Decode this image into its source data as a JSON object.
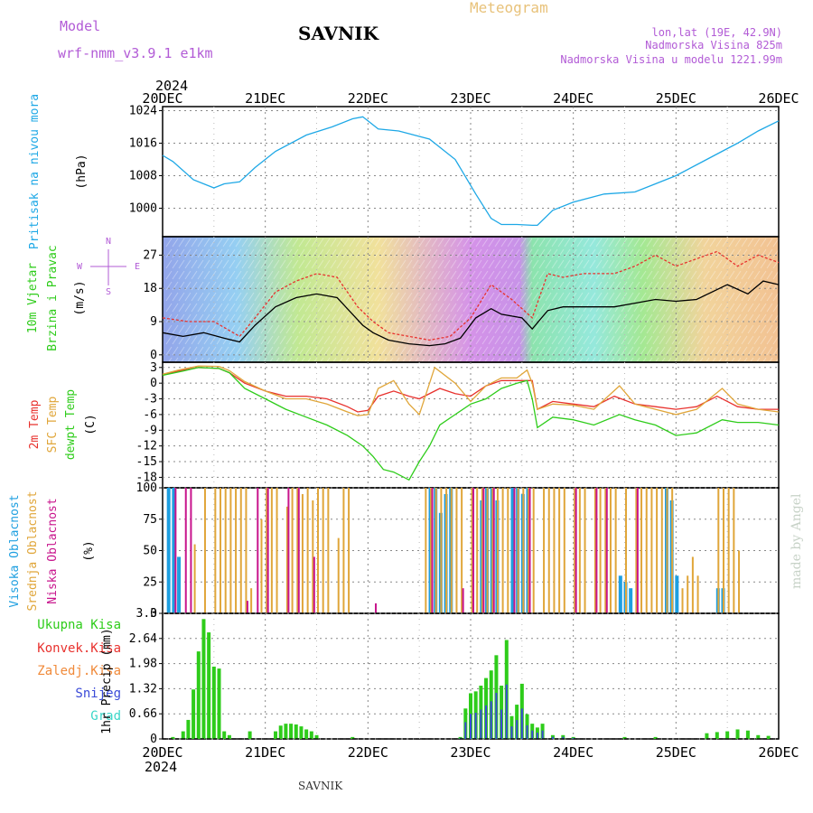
{
  "header": {
    "model_label": "Model",
    "model_name": "wrf-nmm_v3.9.1 e1km",
    "station": "SAVNIK",
    "product": "Meteogram",
    "coords": "lon,lat (19E, 42.9N)",
    "altitude": "Nadmorska Visina 825m",
    "model_altitude": "Nadmorska Visina u modelu 1221.99m",
    "year_top": "2024",
    "year_bottom": "2024",
    "footer_station": "SAVNIK",
    "watermark": "made by Angel"
  },
  "colors": {
    "pressure": "#1ea8e6",
    "wind_speed": "#000000",
    "wind_gust": "#e8322e",
    "temp_2m": "#e8322e",
    "temp_sfc": "#e0a63a",
    "dewpoint": "#2ecc1a",
    "cloud_high": "#1e9fe0",
    "cloud_mid": "#e0a63a",
    "cloud_low": "#c8148c",
    "precip_total": "#2ecc1a",
    "precip_conv": "#e8322e",
    "precip_snow": "#3a4ad8",
    "grid": "#888888"
  },
  "chart_data": [
    {
      "id": "pressure",
      "type": "line",
      "ylabel": [
        "Pritisak na nivou mora",
        "(hPa)"
      ],
      "yticks": [
        "1024",
        "1016",
        "1008",
        "1000"
      ],
      "ylim": [
        993,
        1025
      ],
      "x_dates": [
        "20DEC",
        "21DEC",
        "22DEC",
        "23DEC",
        "24DEC",
        "25DEC",
        "26DEC"
      ],
      "series": [
        {
          "x": [
            0,
            0.1,
            0.3,
            0.5,
            0.6,
            0.75,
            0.9,
            1.1,
            1.4,
            1.65,
            1.85,
            1.95,
            2.0,
            2.1,
            2.3,
            2.6,
            2.85,
            3.05,
            3.2,
            3.3,
            3.45,
            3.6,
            3.65,
            3.8,
            4.0,
            4.3,
            4.6,
            4.8,
            5.0,
            5.3,
            5.6,
            5.8,
            6.0
          ],
          "y": [
            1013,
            1011.5,
            1007,
            1005,
            1006,
            1006.5,
            1010,
            1014,
            1018,
            1020,
            1022,
            1022.5,
            1021.5,
            1019.5,
            1019,
            1017,
            1012,
            1003.5,
            997.5,
            996,
            996,
            995.8,
            995.8,
            999.5,
            1001.5,
            1003.5,
            1004,
            1006,
            1008,
            1012,
            1016,
            1019,
            1021.5
          ]
        }
      ]
    },
    {
      "id": "wind",
      "type": "line",
      "ylabel": [
        "10m Vjetar",
        "Brzina i Pravac",
        "(m/s)"
      ],
      "compass": [
        "N",
        "W",
        "E",
        "S"
      ],
      "yticks": [
        "27",
        "18",
        "9",
        "0"
      ],
      "ylim": [
        -2,
        32
      ],
      "series": [
        {
          "name": "speed",
          "x": [
            0,
            0.2,
            0.4,
            0.6,
            0.75,
            0.9,
            1.1,
            1.3,
            1.5,
            1.7,
            1.85,
            1.95,
            2.05,
            2.2,
            2.4,
            2.6,
            2.75,
            2.9,
            3.05,
            3.2,
            3.3,
            3.5,
            3.6,
            3.75,
            3.9,
            4.1,
            4.4,
            4.6,
            4.8,
            5.0,
            5.2,
            5.5,
            5.7,
            5.85,
            6.0
          ],
          "y": [
            6,
            5,
            6,
            4.5,
            3.5,
            8,
            13,
            15.5,
            16.5,
            15.5,
            11,
            8,
            6,
            4,
            3,
            2.5,
            3,
            4.5,
            10,
            12.5,
            11,
            10,
            7,
            12,
            13,
            13,
            13,
            14,
            15,
            14.5,
            15,
            19,
            16.5,
            20,
            19
          ]
        },
        {
          "name": "gust",
          "x": [
            0,
            0.25,
            0.5,
            0.75,
            0.9,
            1.1,
            1.3,
            1.5,
            1.7,
            1.9,
            2.05,
            2.2,
            2.4,
            2.6,
            2.8,
            3.0,
            3.2,
            3.4,
            3.6,
            3.75,
            3.9,
            4.1,
            4.4,
            4.6,
            4.8,
            5.0,
            5.2,
            5.4,
            5.6,
            5.8,
            6.0
          ],
          "y": [
            10,
            9,
            9,
            5,
            10,
            17,
            20,
            22,
            21,
            13,
            9,
            6,
            5,
            4,
            5,
            10,
            19,
            15,
            10,
            22,
            21,
            22,
            22,
            24,
            27,
            24,
            26,
            28,
            24,
            27,
            25
          ]
        }
      ]
    },
    {
      "id": "temperature",
      "type": "line",
      "ylabel": [
        "2m Temp",
        "SFC Temp",
        "dewpt Temp",
        "(C)"
      ],
      "yticks": [
        "3",
        "0",
        "-3",
        "-6",
        "-9",
        "-12",
        "-15",
        "-18"
      ],
      "ylim": [
        -20,
        4
      ],
      "series": [
        {
          "name": "2m Temp",
          "x": [
            0,
            0.15,
            0.35,
            0.55,
            0.65,
            0.8,
            1.0,
            1.2,
            1.4,
            1.6,
            1.8,
            1.9,
            2.0,
            2.1,
            2.25,
            2.4,
            2.5,
            2.7,
            2.85,
            3.0,
            3.15,
            3.3,
            3.45,
            3.6,
            3.65,
            3.8,
            4.0,
            4.2,
            4.4,
            4.6,
            4.8,
            5.0,
            5.2,
            5.4,
            5.6,
            5.8,
            6.0
          ],
          "y": [
            1.5,
            2.3,
            3,
            2.8,
            2,
            0,
            -1.5,
            -2.5,
            -2.5,
            -3,
            -4.5,
            -5.5,
            -5.2,
            -2.5,
            -1.5,
            -2.5,
            -3,
            -1,
            -2,
            -2.5,
            -0.5,
            0.5,
            0.5,
            0.5,
            -5,
            -3.5,
            -4,
            -4.5,
            -2.5,
            -4,
            -4.5,
            -5,
            -4.5,
            -2.5,
            -4.5,
            -5,
            -5
          ]
        },
        {
          "name": "SFC Temp",
          "x": [
            0,
            0.15,
            0.35,
            0.55,
            0.65,
            0.8,
            1.0,
            1.2,
            1.4,
            1.6,
            1.8,
            1.9,
            2.0,
            2.1,
            2.25,
            2.4,
            2.5,
            2.65,
            2.85,
            3.0,
            3.15,
            3.3,
            3.45,
            3.55,
            3.6,
            3.65,
            3.8,
            4.0,
            4.2,
            4.45,
            4.6,
            4.8,
            5.0,
            5.2,
            5.45,
            5.6,
            5.8,
            6.0
          ],
          "y": [
            1.7,
            2.5,
            3.3,
            3.2,
            2.4,
            0.3,
            -1.5,
            -3,
            -3,
            -4,
            -5.5,
            -6.2,
            -6,
            -1,
            0.5,
            -4,
            -6,
            3,
            0,
            -3.5,
            -0.5,
            1,
            1,
            2.5,
            0,
            -5,
            -4,
            -4.2,
            -5,
            -0.5,
            -4,
            -5,
            -6,
            -5,
            -1,
            -4,
            -5,
            -5.5
          ]
        },
        {
          "name": "dewpt Temp",
          "x": [
            0,
            0.2,
            0.35,
            0.55,
            0.65,
            0.8,
            1.0,
            1.2,
            1.4,
            1.6,
            1.8,
            1.95,
            2.05,
            2.15,
            2.25,
            2.4,
            2.5,
            2.6,
            2.7,
            2.85,
            3.0,
            3.15,
            3.3,
            3.45,
            3.55,
            3.6,
            3.65,
            3.8,
            4.0,
            4.2,
            4.45,
            4.6,
            4.8,
            5.0,
            5.2,
            5.45,
            5.6,
            5.8,
            6.0
          ],
          "y": [
            1.5,
            2.3,
            3,
            2.8,
            2,
            -1,
            -3,
            -5,
            -6.5,
            -8,
            -10,
            -12,
            -14,
            -16.5,
            -17,
            -18.5,
            -15,
            -12,
            -8,
            -6,
            -4,
            -3,
            -1,
            0,
            0.5,
            -3,
            -8.5,
            -6.5,
            -7,
            -8,
            -6,
            -7,
            -8,
            -10,
            -9.5,
            -7,
            -7.5,
            -7.5,
            -8
          ]
        }
      ]
    },
    {
      "id": "clouds",
      "type": "bar",
      "ylabel": [
        "Visoka Oblacnost",
        "Srednja Oblacnost",
        "Niska Oblacnost",
        "(%)"
      ],
      "yticks": [
        "100",
        "75",
        "50",
        "25",
        "0"
      ],
      "ylim": [
        0,
        100
      ],
      "series": [
        {
          "name": "Visoka Oblacnost",
          "x": [
            0.05,
            0.1,
            0.15,
            2.6,
            2.65,
            2.7,
            2.75,
            2.8,
            3.1,
            3.15,
            3.2,
            3.25,
            3.4,
            3.45,
            3.5,
            3.55,
            4.45,
            4.5,
            4.55,
            4.9,
            4.95,
            5.0,
            5.4,
            5.45
          ],
          "values": [
            100,
            100,
            45,
            100,
            100,
            80,
            95,
            100,
            90,
            100,
            100,
            90,
            100,
            100,
            95,
            100,
            30,
            25,
            20,
            100,
            90,
            30,
            20,
            20
          ]
        },
        {
          "name": "Srednja Oblacnost",
          "x": [
            0.3,
            0.4,
            0.5,
            0.55,
            0.6,
            0.65,
            0.7,
            0.75,
            0.8,
            0.85,
            0.95,
            1.0,
            1.05,
            1.1,
            1.2,
            1.25,
            1.3,
            1.35,
            1.4,
            1.45,
            1.5,
            1.55,
            1.6,
            1.7,
            1.75,
            1.8,
            2.55,
            2.6,
            2.65,
            2.7,
            2.75,
            2.8,
            2.85,
            2.9,
            3.0,
            3.05,
            3.1,
            3.15,
            3.2,
            3.25,
            3.3,
            3.35,
            3.45,
            3.5,
            3.55,
            3.6,
            3.7,
            3.75,
            3.8,
            3.85,
            3.9,
            4.0,
            4.05,
            4.1,
            4.2,
            4.25,
            4.3,
            4.35,
            4.4,
            4.5,
            4.6,
            4.65,
            4.7,
            4.75,
            4.8,
            4.85,
            4.9,
            4.95,
            5.05,
            5.1,
            5.15,
            5.2,
            5.4,
            5.45,
            5.5,
            5.55,
            5.6
          ],
          "values": [
            55,
            100,
            100,
            100,
            100,
            100,
            100,
            100,
            100,
            20,
            75,
            100,
            100,
            100,
            85,
            100,
            100,
            95,
            100,
            90,
            100,
            100,
            100,
            60,
            100,
            100,
            100,
            100,
            100,
            100,
            100,
            100,
            100,
            100,
            100,
            100,
            100,
            100,
            100,
            100,
            100,
            100,
            100,
            100,
            100,
            100,
            100,
            100,
            100,
            100,
            100,
            100,
            100,
            100,
            100,
            100,
            100,
            100,
            100,
            100,
            100,
            100,
            100,
            100,
            100,
            100,
            100,
            100,
            20,
            30,
            45,
            30,
            100,
            100,
            100,
            100,
            50
          ]
        },
        {
          "name": "Niska Oblacnost",
          "x": [
            0.1,
            0.2,
            0.25,
            0.8,
            0.9,
            1.0,
            1.2,
            1.3,
            1.45,
            2.05,
            2.6,
            2.9,
            3.0,
            3.1,
            3.2,
            3.4,
            3.55,
            4.0,
            4.2,
            4.3,
            4.6
          ],
          "values": [
            100,
            100,
            100,
            10,
            100,
            100,
            100,
            100,
            45,
            8,
            100,
            20,
            100,
            100,
            100,
            100,
            100,
            100,
            100,
            100,
            100
          ]
        }
      ]
    },
    {
      "id": "precip",
      "type": "bar",
      "ylabel": [
        "Ukupna Kisa",
        "Konvek.Kisa",
        "Zaledj.Kisa",
        "Snijeg",
        "Grad",
        "1hr Precip (mm)"
      ],
      "yticks": [
        "3.3",
        "2.64",
        "1.98",
        "1.32",
        "0.66",
        "0"
      ],
      "ylim": [
        0,
        3.3
      ],
      "series": [
        {
          "name": "Ukupna Kisa",
          "x": [
            0.1,
            0.2,
            0.25,
            0.3,
            0.35,
            0.4,
            0.45,
            0.5,
            0.55,
            0.6,
            0.65,
            0.85,
            1.1,
            1.15,
            1.2,
            1.25,
            1.3,
            1.35,
            1.4,
            1.45,
            1.5,
            1.85,
            2.9,
            2.95,
            3.0,
            3.05,
            3.1,
            3.15,
            3.2,
            3.25,
            3.3,
            3.35,
            3.4,
            3.45,
            3.5,
            3.55,
            3.6,
            3.65,
            3.7,
            3.8,
            3.9,
            4.0,
            4.5,
            4.8,
            5.3,
            5.4,
            5.5,
            5.6,
            5.7,
            5.8,
            5.9
          ],
          "values": [
            0.05,
            0.2,
            0.5,
            1.3,
            2.3,
            3.15,
            2.8,
            1.9,
            1.85,
            0.2,
            0.1,
            0.2,
            0.2,
            0.35,
            0.4,
            0.4,
            0.38,
            0.33,
            0.25,
            0.2,
            0.1,
            0.05,
            0.05,
            0.8,
            1.2,
            1.25,
            1.4,
            1.6,
            1.8,
            2.2,
            1.4,
            2.6,
            0.6,
            0.9,
            1.45,
            0.65,
            0.4,
            0.3,
            0.4,
            0.1,
            0.1,
            0.05,
            0.05,
            0.05,
            0.15,
            0.18,
            0.2,
            0.25,
            0.22,
            0.1,
            0.08
          ]
        }
      ]
    }
  ]
}
